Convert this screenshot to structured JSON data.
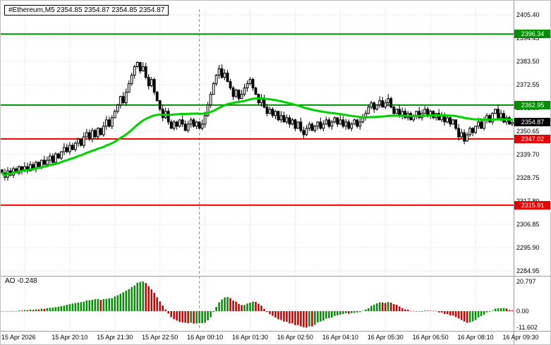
{
  "window": {
    "title_bar": "#Ethereum,M5 2354.85 2354.87 2354.85 2354.87"
  },
  "symbol": {
    "name": "#Ethereum",
    "timeframe": "M5",
    "ohlc": {
      "open": "2354.85",
      "high": "2354.87",
      "low": "2354.85",
      "close": "2354.87"
    }
  },
  "colors": {
    "background": "#ffffff",
    "grid": "#d9d9d9",
    "separator": "#8c8c8c",
    "candle": "#000000",
    "bull_fill": "#ffffff",
    "bear_fill": "#000000",
    "ma_line": "#00d200",
    "resistance": "#008f00",
    "support": "#e60000",
    "current_badge": "#000000",
    "ao_up": "#009600",
    "ao_down": "#d40000"
  },
  "price_axis": {
    "labels": [
      "2405.40",
      "2394.45",
      "2383.50",
      "2372.55",
      "2361.60",
      "2350.65",
      "2339.70",
      "2328.75",
      "2317.80",
      "2306.85",
      "2295.90",
      "2284.95"
    ],
    "values": [
      2405.4,
      2394.45,
      2383.5,
      2372.55,
      2361.6,
      2350.65,
      2339.7,
      2328.75,
      2317.8,
      2306.85,
      2295.9,
      2284.95
    ]
  },
  "time_axis": {
    "labels": [
      "15 Apr 2026",
      "15 Apr 20:10",
      "15 Apr 21:30",
      "15 Apr 22:50",
      "16 Apr 00:10",
      "16 Apr 01:30",
      "16 Apr 02:50",
      "16 Apr 04:10",
      "16 Apr 05:30",
      "16 Apr 06:50",
      "16 Apr 08:10",
      "16 Apr 09:30"
    ]
  },
  "indicator": {
    "label": "AO -0.248",
    "name": "AO",
    "value": "-0.248",
    "axis_labels": [
      "20.797",
      "0.00",
      "-11.602"
    ],
    "axis_values": [
      20.797,
      0,
      -11.602
    ]
  },
  "levels": [
    {
      "label": "2396.34",
      "price": 2396.34,
      "color": "#008f00",
      "kind": "resistance"
    },
    {
      "label": "2362.95",
      "price": 2362.95,
      "color": "#008f00",
      "kind": "resistance"
    },
    {
      "label": "2354.87",
      "price": 2354.87,
      "color": "#000000",
      "kind": "current"
    },
    {
      "label": "2347.02",
      "price": 2347.02,
      "color": "#e60000",
      "kind": "support"
    },
    {
      "label": "2315.91",
      "price": 2315.91,
      "color": "#e60000",
      "kind": "support"
    }
  ],
  "chart_data": {
    "type": "candlestick",
    "title": "#Ethereum,M5",
    "symbol": "#Ethereum",
    "timeframe_minutes": 5,
    "x_labels": [
      "15 Apr 2026",
      "15 Apr 20:10",
      "15 Apr 21:30",
      "15 Apr 22:50",
      "16 Apr 00:10",
      "16 Apr 01:30",
      "16 Apr 02:50",
      "16 Apr 04:10",
      "16 Apr 05:30",
      "16 Apr 06:50",
      "16 Apr 08:10",
      "16 Apr 09:30"
    ],
    "ylim": [
      2283.29,
      2408.05
    ],
    "grid": true,
    "open_rule": "previous_close",
    "day_separator_bar": 70,
    "close": [
      2331,
      2329,
      2332,
      2330,
      2333,
      2331,
      2334,
      2332,
      2334,
      2332,
      2335,
      2333,
      2336,
      2334,
      2337,
      2335,
      2337,
      2339,
      2336,
      2340,
      2338,
      2341,
      2343,
      2341,
      2344,
      2342,
      2345,
      2347,
      2344,
      2348,
      2350,
      2347,
      2351,
      2348,
      2352,
      2349,
      2353,
      2356,
      2353,
      2357,
      2360,
      2363,
      2367,
      2364,
      2369,
      2373,
      2377,
      2381,
      2383,
      2379,
      2381,
      2376,
      2372,
      2375,
      2369,
      2365,
      2361,
      2357,
      2360,
      2355,
      2352,
      2355,
      2353,
      2356,
      2354,
      2351,
      2354,
      2356,
      2353,
      2355,
      2352,
      2354,
      2358,
      2363,
      2368,
      2373,
      2377,
      2380,
      2376,
      2378,
      2374,
      2371,
      2367,
      2370,
      2366,
      2368,
      2371,
      2373,
      2375,
      2371,
      2368,
      2364,
      2366,
      2362,
      2359,
      2361,
      2358,
      2360,
      2356,
      2358,
      2355,
      2357,
      2354,
      2356,
      2352,
      2355,
      2351,
      2349,
      2352,
      2354,
      2351,
      2353,
      2355,
      2352,
      2354,
      2356,
      2353,
      2355,
      2357,
      2354,
      2356,
      2353,
      2355,
      2352,
      2354,
      2356,
      2353,
      2355,
      2357,
      2359,
      2362,
      2364,
      2361,
      2363,
      2365,
      2362,
      2364,
      2366,
      2362,
      2359,
      2361,
      2358,
      2360,
      2357,
      2359,
      2356,
      2358,
      2360,
      2357,
      2359,
      2361,
      2358,
      2360,
      2357,
      2359,
      2356,
      2358,
      2355,
      2357,
      2354,
      2356,
      2352,
      2348,
      2350,
      2346,
      2349,
      2352,
      2350,
      2353,
      2355,
      2352,
      2356,
      2358,
      2355,
      2359,
      2361,
      2357,
      2359,
      2355,
      2357,
      2354,
      2354.87
    ],
    "wick_overrides": {
      "high": {
        "48": 2383.5,
        "77": 2381.8,
        "137": 2368.2
      },
      "low": {
        "1": 2327.5,
        "107": 2347.3,
        "164": 2344.5
      }
    },
    "ma": {
      "type": "lwma",
      "period": 60,
      "color": "#00d200",
      "width": 3
    },
    "levels": [
      2396.34,
      2362.95,
      2354.87,
      2347.02,
      2315.91
    ],
    "indicator_panel": {
      "type": "histogram",
      "name": "AO",
      "formula": "sma5_minus_sma34_of_close",
      "max": 20.797,
      "min": -11.602,
      "last_value": -0.248
    }
  }
}
